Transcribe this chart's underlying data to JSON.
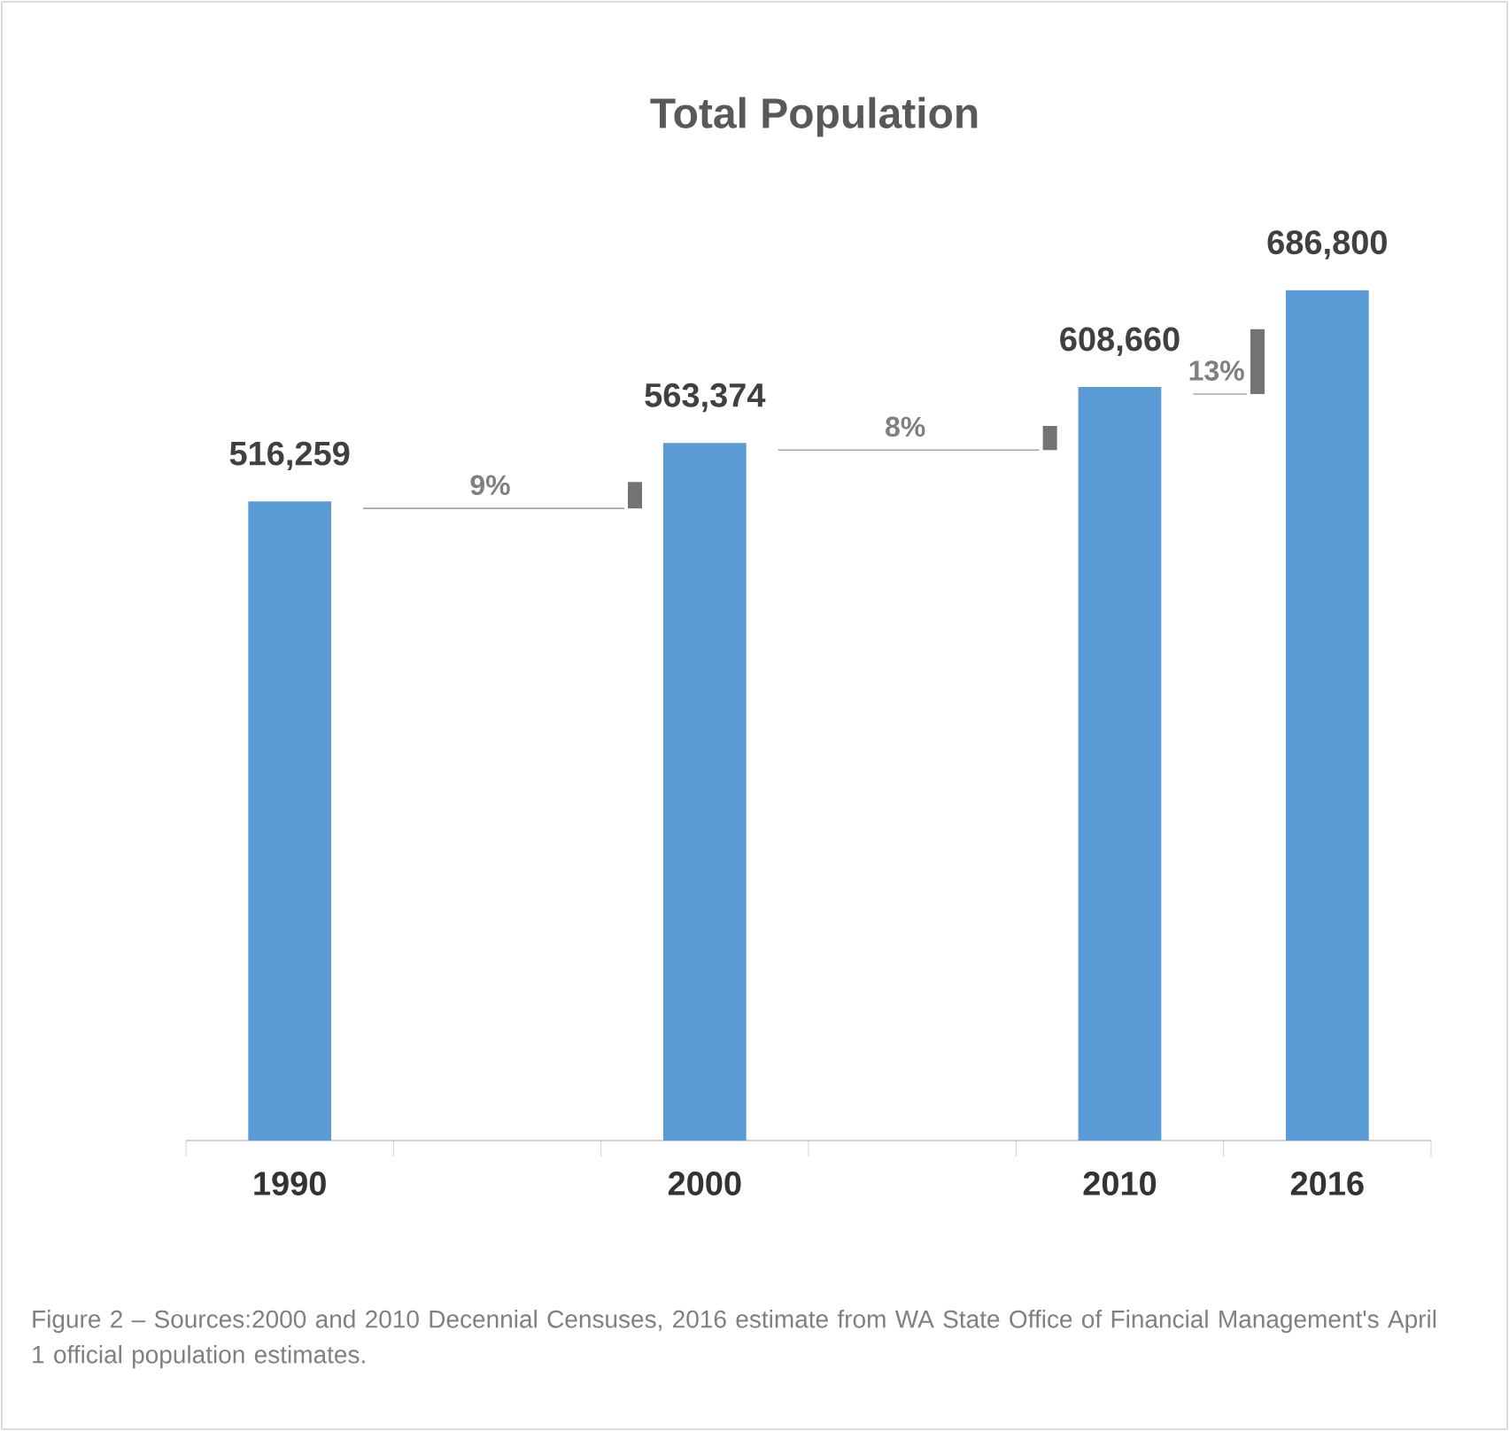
{
  "chart_data": {
    "type": "bar",
    "title": "Total Population",
    "categories": [
      "1990",
      null,
      "2000",
      null,
      "2010",
      "2016"
    ],
    "values": [
      516259,
      null,
      563374,
      null,
      608660,
      686800
    ],
    "value_labels": [
      "516,259",
      null,
      "563,374",
      null,
      "608,660",
      "686,800"
    ],
    "color": "#5b9bd5",
    "annotations": [
      "9%",
      "8%",
      "13%",
      "Figure 2 – Sources:2000 and 2010 Decennial Censuses, 2016 estimate from WA State Office of Financial Management's April 1 official population estimates."
    ]
  }
}
